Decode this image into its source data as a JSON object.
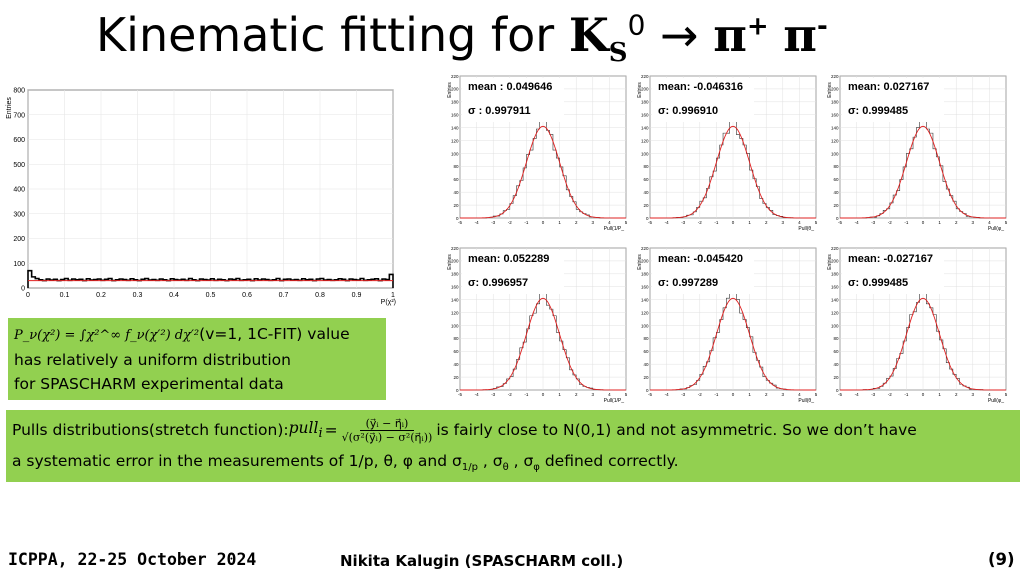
{
  "title": {
    "main": "Kinematic fitting for ",
    "ks": "K",
    "sub": "S",
    "sup": "0",
    "arrow": "→",
    "pi1": "π",
    "plus": "+",
    "pi2": "π",
    "minus": "-"
  },
  "chi2_plot": {
    "ylabel": "Entries",
    "xlabel": "P(χ²)",
    "yticks": [
      "0",
      "100",
      "200",
      "300",
      "400",
      "500",
      "600",
      "700",
      "800"
    ],
    "xticks": [
      "0",
      "0.1",
      "0.2",
      "0.3",
      "0.4",
      "0.5",
      "0.6",
      "0.7",
      "0.8",
      "0.9",
      "1"
    ]
  },
  "chart_data": {
    "type": "bar",
    "x": [
      0.0,
      0.01,
      0.02,
      0.03,
      0.04,
      0.05,
      0.06,
      0.07,
      0.08,
      0.09,
      0.1,
      0.11,
      0.12,
      0.13,
      0.14,
      0.15,
      0.16,
      0.17,
      0.18,
      0.19,
      0.2,
      0.21,
      0.22,
      0.23,
      0.24,
      0.25,
      0.26,
      0.27,
      0.28,
      0.29,
      0.3,
      0.31,
      0.32,
      0.33,
      0.34,
      0.35,
      0.36,
      0.37,
      0.38,
      0.39,
      0.4,
      0.41,
      0.42,
      0.43,
      0.44,
      0.45,
      0.46,
      0.47,
      0.48,
      0.49,
      0.5,
      0.51,
      0.52,
      0.53,
      0.54,
      0.55,
      0.56,
      0.57,
      0.58,
      0.59,
      0.6,
      0.61,
      0.62,
      0.63,
      0.64,
      0.65,
      0.66,
      0.67,
      0.68,
      0.69,
      0.7,
      0.71,
      0.72,
      0.73,
      0.74,
      0.75,
      0.76,
      0.77,
      0.78,
      0.79,
      0.8,
      0.81,
      0.82,
      0.83,
      0.84,
      0.85,
      0.86,
      0.87,
      0.88,
      0.89,
      0.9,
      0.91,
      0.92,
      0.93,
      0.94,
      0.95,
      0.96,
      0.97,
      0.98,
      0.99
    ],
    "values": [
      70,
      45,
      38,
      33,
      30,
      36,
      32,
      35,
      30,
      34,
      38,
      31,
      36,
      33,
      35,
      30,
      37,
      32,
      34,
      36,
      31,
      35,
      38,
      30,
      33,
      36,
      34,
      31,
      37,
      33,
      30,
      35,
      38,
      32,
      34,
      31,
      36,
      33,
      30,
      37,
      34,
      32,
      35,
      31,
      38,
      33,
      30,
      36,
      34,
      32,
      37,
      31,
      35,
      33,
      30,
      36,
      34,
      38,
      31,
      33,
      35,
      30,
      37,
      32,
      36,
      34,
      31,
      33,
      38,
      30,
      35,
      36,
      32,
      34,
      31,
      37,
      33,
      35,
      30,
      36,
      38,
      32,
      34,
      31,
      33,
      37,
      35,
      30,
      36,
      34,
      32,
      38,
      31,
      33,
      35,
      37,
      30,
      36,
      34,
      55
    ],
    "fit_level": 30,
    "ylim": [
      0,
      800
    ],
    "xlim": [
      0,
      1
    ]
  },
  "pulls": [
    {
      "mean": "mean : 0.049646",
      "sigma": "σ : 0.997911",
      "xlabel": "Pull(1/P_"
    },
    {
      "mean": "mean: -0.046316",
      "sigma": "σ: 0.996910",
      "xlabel": "Pull(θ_"
    },
    {
      "mean": "mean: 0.027167",
      "sigma": "σ: 0.999485",
      "xlabel": "Pull(φ_"
    },
    {
      "mean": "mean: 0.052289",
      "sigma": "σ: 0.996957",
      "xlabel": "Pull(1/P_"
    },
    {
      "mean": "mean: -0.045420",
      "sigma": "σ: 0.997289",
      "xlabel": "Pull(θ_"
    },
    {
      "mean": "mean: -0.027167",
      "sigma": "σ: 0.999485",
      "xlabel": "Pull(φ_"
    }
  ],
  "pull_axes": {
    "ylabel": "Entries",
    "yticks": [
      "0",
      "20",
      "40",
      "60",
      "80",
      "100",
      "120",
      "140",
      "160",
      "180",
      "200",
      "220"
    ],
    "xticks": [
      "-5",
      "-4",
      "-3",
      "-2",
      "-1",
      "0",
      "1",
      "2",
      "3",
      "4",
      "5"
    ]
  },
  "note1": {
    "formula": "P_ν(χ²) = ∫χ²^∞ f_ν(χ′²) dχ′²",
    "line1_tail": "(v=1, 1C-FIT) value",
    "line2": "has relatively a uniform distribution",
    "line3": "for SPASCHARM experimental data"
  },
  "note2": {
    "lead": "Pulls distributions(stretch function): ",
    "pull_label": "pull",
    "pull_sub": "i",
    "eq": " =",
    "numerator": "(y⃗ᵢ − η⃗ᵢ)",
    "denominator": "√(σ²(y⃗ᵢ) − σ²(η⃗ᵢ))",
    "tail": "is fairly close to N(0,1) and not asymmetric. So we don’t have",
    "line2": "a systematic error in the measurements of 1/p, θ, φ and σ",
    "s1": "1/p",
    "c1": " , σ",
    "s2": "θ",
    "c2": " , σ",
    "s3": "φ",
    "end": " defined correctly."
  },
  "footer": {
    "left": "ICPPA, 22-25 October 2024",
    "center": "Nikita Kalugin (SPASCHARM coll.)",
    "right": "(9)"
  },
  "colors": {
    "green": "#92d050",
    "fit": "#e02020",
    "hist": "#000000"
  }
}
